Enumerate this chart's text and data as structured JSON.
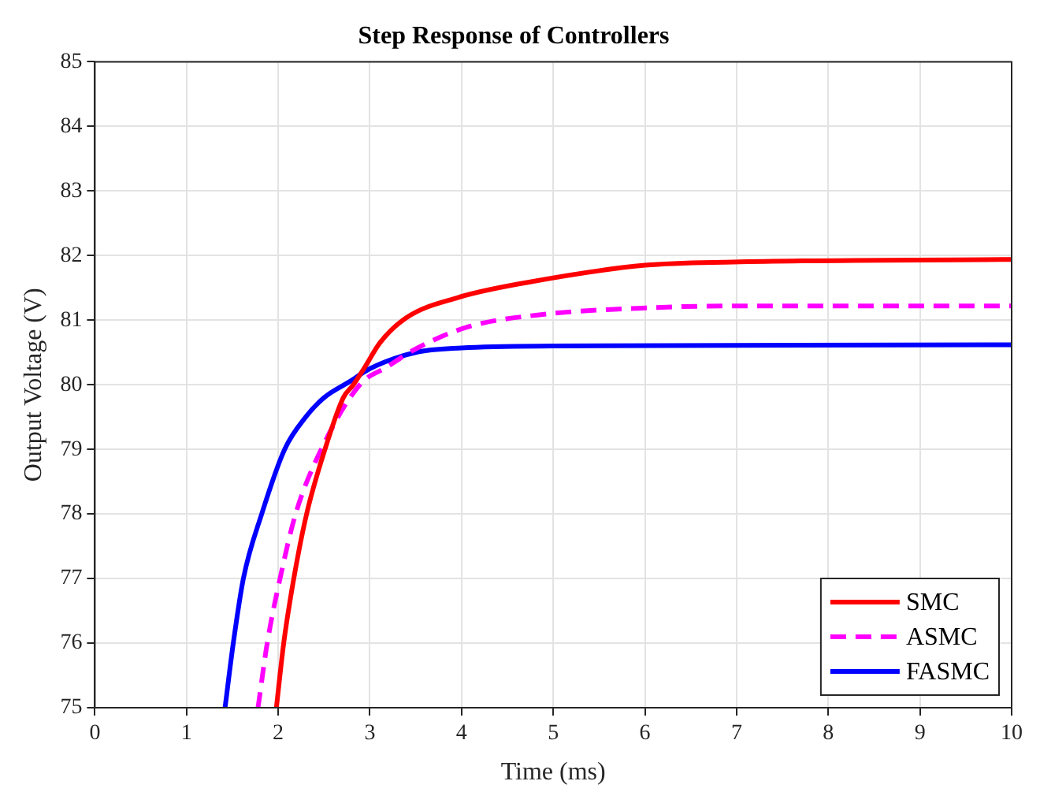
{
  "chart_data": {
    "type": "line",
    "title": "Step Response of Controllers",
    "xlabel": "Time (ms)",
    "ylabel": "Output Voltage (V)",
    "xlim": [
      0,
      10
    ],
    "xticks": [
      0,
      1,
      2,
      3,
      4,
      5,
      6,
      7,
      8,
      9,
      10
    ],
    "ylim": [
      75,
      85
    ],
    "yticks": [
      75,
      76,
      77,
      78,
      79,
      80,
      81,
      82,
      83,
      84,
      85
    ],
    "grid": true,
    "legend": "bottom right",
    "marker": "none",
    "series": [
      {
        "name": "SMC",
        "color": "#ff0000",
        "line_style": "solid",
        "x": [
          1.98,
          2.06,
          2.17,
          2.31,
          2.51,
          2.71,
          2.82,
          2.94,
          3.11,
          3.4,
          3.96,
          4.7,
          6.0,
          6.96,
          10
        ],
        "values": [
          75,
          76,
          77,
          78,
          79,
          79.8,
          80,
          80.26,
          80.65,
          81.04,
          81.35,
          81.58,
          81.85,
          81.9,
          81.94
        ]
      },
      {
        "name": "ASMC",
        "color": "#ff00ff",
        "line_style": "dashed",
        "x": [
          1.78,
          1.88,
          2.02,
          2.19,
          2.47,
          2.89,
          3.18,
          3.52,
          4.08,
          4.83,
          6.01,
          7,
          10
        ],
        "values": [
          75,
          76,
          77,
          78,
          79,
          80,
          80.27,
          80.57,
          80.9,
          81.08,
          81.19,
          81.22,
          81.22
        ]
      },
      {
        "name": "FASMC",
        "color": "#0000ff",
        "line_style": "solid",
        "x": [
          1.42,
          1.51,
          1.62,
          1.82,
          2.07,
          2.3,
          2.5,
          2.78,
          3.0,
          3.5,
          4,
          5,
          10
        ],
        "values": [
          75,
          76,
          77,
          78,
          79,
          79.5,
          79.8,
          80.05,
          80.25,
          80.5,
          80.57,
          80.6,
          80.62
        ]
      }
    ]
  }
}
